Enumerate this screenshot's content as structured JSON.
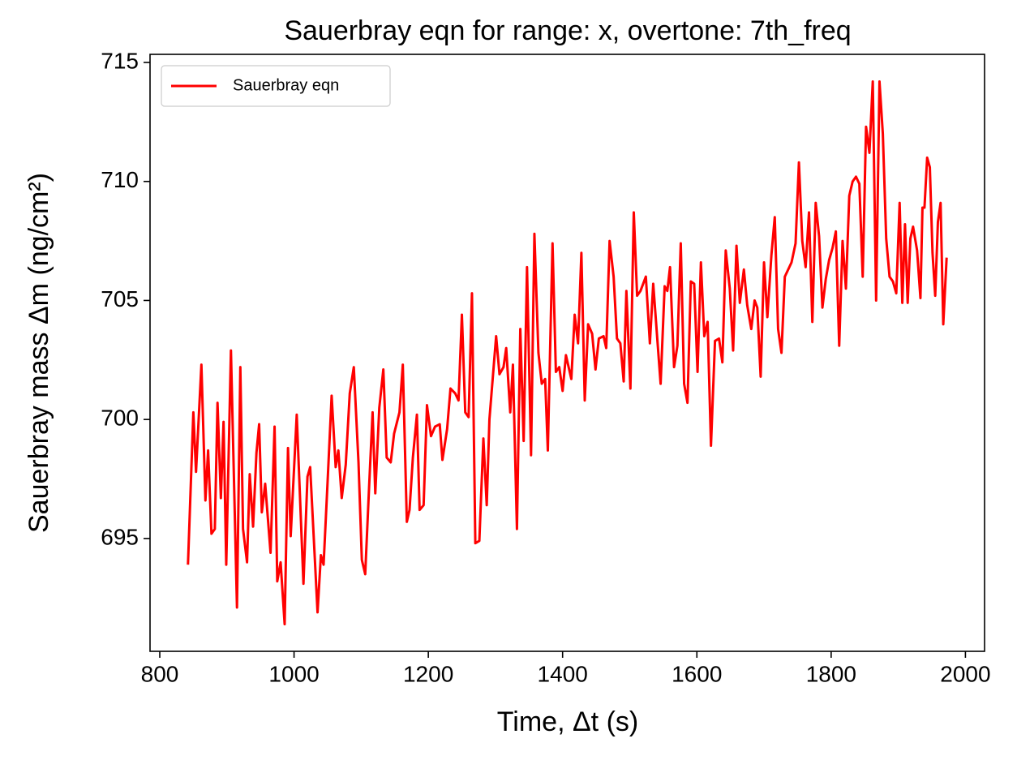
{
  "chart_data": {
    "type": "line",
    "title": "Sauerbray eqn for range: x, overtone: 7th_freq",
    "x_label": "Time, Δt (s)",
    "y_label": "Sauerbray mass Δm (ng/cm²)",
    "legend": "upper left",
    "x": [
      842,
      850,
      854,
      862,
      868,
      872,
      877,
      882,
      886,
      891,
      895,
      899,
      906,
      915,
      920,
      924,
      930,
      934,
      939,
      944,
      948,
      952,
      957,
      965,
      971,
      975,
      980,
      986,
      991,
      995,
      1004,
      1014,
      1020,
      1024,
      1035,
      1040,
      1044,
      1050,
      1056,
      1062,
      1066,
      1071,
      1077,
      1083,
      1089,
      1096,
      1101,
      1106,
      1112,
      1117,
      1121,
      1127,
      1133,
      1138,
      1144,
      1149,
      1157,
      1162,
      1168,
      1172,
      1177,
      1183,
      1187,
      1193,
      1198,
      1204,
      1210,
      1217,
      1221,
      1228,
      1233,
      1240,
      1245,
      1250,
      1255,
      1260,
      1265,
      1270,
      1276,
      1282,
      1287,
      1291,
      1301,
      1306,
      1312,
      1316,
      1322,
      1326,
      1332,
      1337,
      1342,
      1347,
      1353,
      1358,
      1364,
      1369,
      1374,
      1378,
      1385,
      1390,
      1395,
      1400,
      1405,
      1413,
      1418,
      1423,
      1428,
      1433,
      1438,
      1444,
      1449,
      1454,
      1461,
      1465,
      1470,
      1476,
      1481,
      1486,
      1491,
      1495,
      1501,
      1506,
      1511,
      1516,
      1524,
      1530,
      1535,
      1541,
      1546,
      1552,
      1556,
      1560,
      1566,
      1571,
      1576,
      1581,
      1586,
      1591,
      1596,
      1601,
      1606,
      1611,
      1616,
      1621,
      1627,
      1633,
      1638,
      1643,
      1649,
      1654,
      1659,
      1664,
      1670,
      1675,
      1681,
      1686,
      1690,
      1695,
      1700,
      1705,
      1711,
      1716,
      1721,
      1726,
      1731,
      1741,
      1747,
      1752,
      1757,
      1762,
      1767,
      1772,
      1777,
      1782,
      1787,
      1792,
      1797,
      1802,
      1807,
      1812,
      1817,
      1822,
      1827,
      1832,
      1837,
      1842,
      1847,
      1852,
      1857,
      1862,
      1867,
      1872,
      1877,
      1882,
      1887,
      1892,
      1897,
      1902,
      1906,
      1910,
      1914,
      1918,
      1922,
      1928,
      1933,
      1936,
      1939,
      1943,
      1947,
      1951,
      1955,
      1959,
      1963,
      1967,
      1972
    ],
    "series": [
      {
        "name": "Sauerbray eqn",
        "color": "#ff0000",
        "values": [
          693.9,
          700.3,
          697.8,
          702.3,
          696.6,
          698.7,
          695.2,
          695.4,
          700.7,
          696.7,
          699.9,
          693.9,
          702.9,
          692.1,
          702.2,
          695.4,
          694.0,
          697.7,
          695.5,
          698.6,
          699.8,
          696.1,
          697.3,
          694.4,
          699.7,
          693.2,
          694.0,
          691.4,
          698.8,
          695.1,
          700.2,
          693.1,
          697.6,
          698.0,
          691.9,
          694.3,
          693.9,
          697.4,
          701.0,
          698.0,
          698.7,
          696.7,
          698.1,
          701.1,
          702.2,
          698.2,
          694.1,
          693.5,
          697.3,
          700.3,
          696.9,
          700.5,
          702.1,
          698.4,
          698.2,
          699.4,
          700.3,
          702.3,
          695.7,
          696.2,
          698.4,
          700.2,
          696.2,
          696.4,
          700.6,
          699.3,
          699.7,
          699.8,
          698.3,
          699.6,
          701.3,
          701.1,
          700.8,
          704.4,
          700.3,
          700.1,
          705.3,
          694.8,
          694.9,
          699.2,
          696.4,
          700.0,
          703.5,
          701.9,
          702.2,
          703.0,
          700.3,
          702.3,
          695.4,
          703.8,
          699.1,
          706.4,
          698.5,
          707.8,
          702.8,
          701.5,
          701.7,
          698.7,
          707.4,
          702.0,
          702.2,
          701.2,
          702.7,
          701.7,
          704.4,
          703.2,
          707.0,
          700.8,
          704.0,
          703.6,
          702.1,
          703.4,
          703.5,
          703.0,
          707.5,
          706.0,
          703.4,
          703.2,
          701.6,
          705.4,
          701.3,
          708.7,
          705.2,
          705.4,
          706.0,
          703.2,
          705.7,
          703.4,
          701.5,
          705.6,
          705.4,
          706.4,
          702.2,
          703.1,
          707.4,
          701.5,
          700.7,
          705.8,
          705.7,
          702.0,
          706.6,
          703.5,
          704.1,
          698.9,
          703.3,
          703.4,
          702.4,
          707.1,
          705.5,
          702.9,
          707.3,
          704.9,
          706.3,
          704.8,
          703.8,
          705.0,
          704.7,
          701.8,
          706.6,
          704.3,
          706.9,
          708.5,
          703.8,
          702.8,
          706.0,
          706.6,
          707.4,
          710.8,
          707.5,
          706.4,
          708.7,
          704.1,
          709.1,
          707.7,
          704.7,
          705.9,
          706.7,
          707.2,
          707.9,
          703.1,
          707.5,
          705.5,
          709.4,
          710.0,
          710.2,
          709.9,
          706.0,
          712.3,
          711.2,
          714.2,
          705.0,
          714.2,
          712.0,
          707.6,
          706.0,
          705.8,
          705.3,
          709.1,
          704.9,
          708.2,
          704.9,
          707.6,
          708.1,
          707.1,
          705.1,
          708.9,
          708.9,
          711.0,
          710.6,
          707.0,
          705.2,
          708.3,
          709.1,
          704.0,
          706.8
        ]
      }
    ],
    "xlim": [
      785.5,
      2028.5
    ],
    "ylim": [
      690.26,
      715.34
    ],
    "xticks": [
      800,
      1000,
      1200,
      1400,
      1600,
      1800,
      2000
    ],
    "yticks": [
      695,
      700,
      705,
      710,
      715
    ]
  }
}
